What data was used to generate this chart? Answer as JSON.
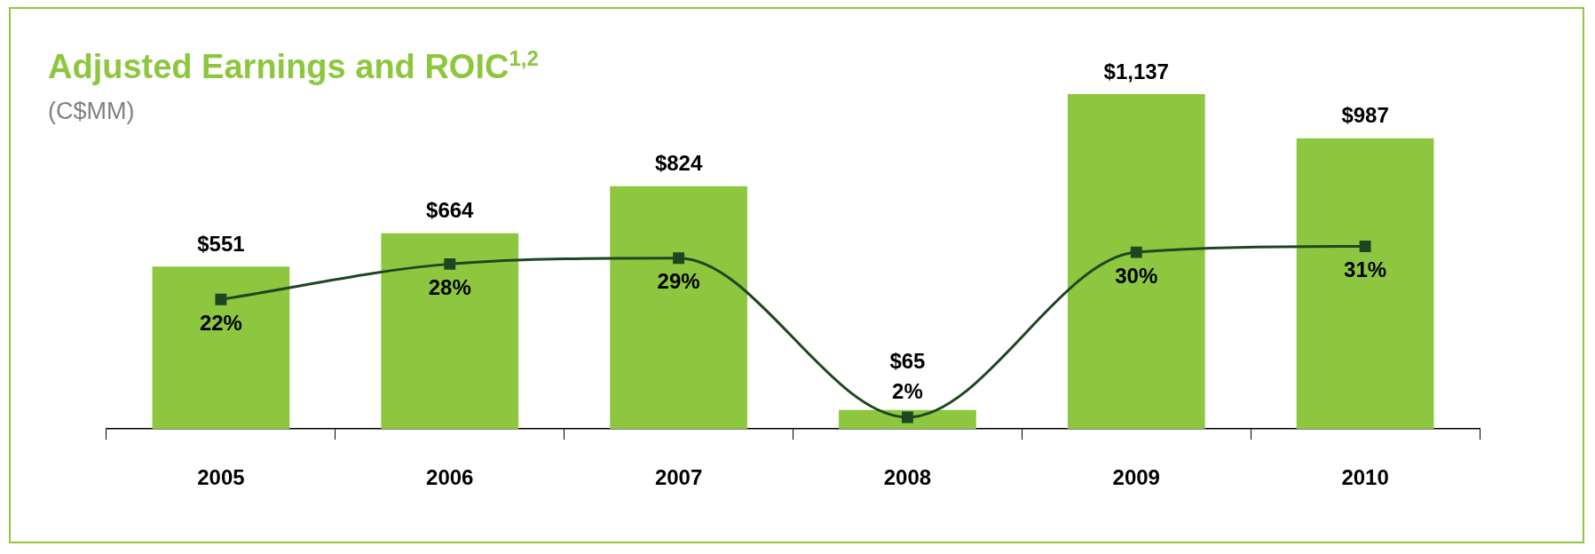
{
  "chart_data": {
    "type": "bar",
    "title": "Adjusted Earnings and ROIC$^{1,2}$",
    "subtitle": "(C$MM)",
    "categories": [
      "2005",
      "2006",
      "2007",
      "2008",
      "2009",
      "2010"
    ],
    "series": [
      {
        "color": "#8dc63f",
        "values": [
          551,
          664,
          824,
          65,
          1137,
          987
        ],
        "value_labels": [
          "$551",
          "$664",
          "$824",
          "$65",
          "$1,137",
          "$987"
        ]
      },
      {
        "type": "line",
        "axis": "y2",
        "color": "#1e4620",
        "marker": "square",
        "values": [
          22,
          28,
          29,
          2,
          30,
          31
        ],
        "value_labels": [
          "22%",
          "28%",
          "29%",
          "2%",
          "30%",
          "31%"
        ]
      }
    ],
    "grid": false,
    "legend": false
  }
}
